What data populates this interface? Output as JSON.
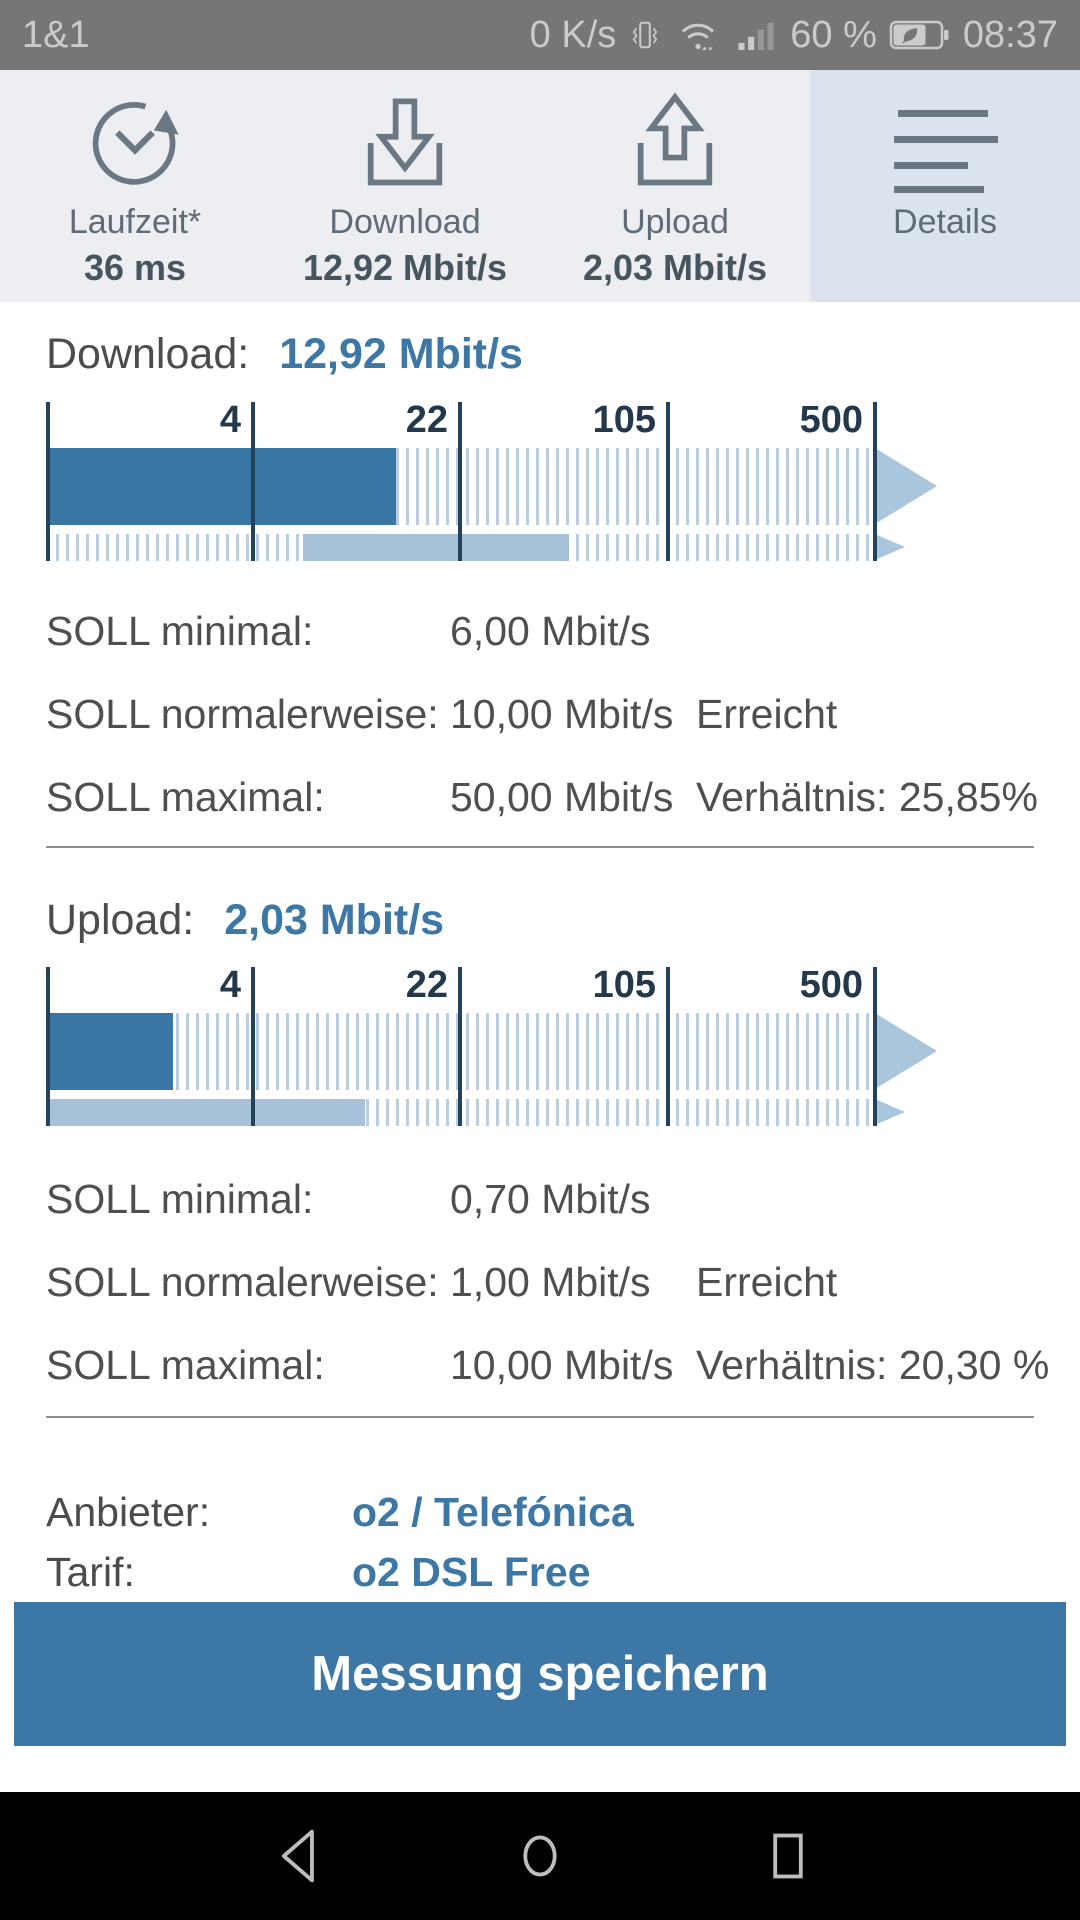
{
  "status_bar": {
    "carrier": "1&1",
    "net_speed": "0 K/s",
    "battery_percent": "60 %",
    "time": "08:37"
  },
  "toolbar": {
    "items": [
      {
        "id": "laufzeit",
        "icon": "runtime-clock-icon",
        "label": "Laufzeit*",
        "value": "36 ms"
      },
      {
        "id": "download",
        "icon": "download-icon",
        "label": "Download",
        "value": "12,92 Mbit/s"
      },
      {
        "id": "upload",
        "icon": "upload-icon",
        "label": "Upload",
        "value": "2,03 Mbit/s"
      },
      {
        "id": "details",
        "icon": "menu-icon",
        "label": "Details",
        "value": "",
        "active": true
      }
    ]
  },
  "sections": [
    {
      "id": "download",
      "heading": "Download:",
      "heading_value": "12,92 Mbit/s",
      "rows": [
        {
          "label": "SOLL minimal:",
          "value": "6,00 Mbit/s",
          "extra": ""
        },
        {
          "label": "SOLL normalerweise:",
          "value": "10,00 Mbit/s",
          "extra": "Erreicht"
        },
        {
          "label": "SOLL maximal:",
          "value": "50,00 Mbit/s",
          "extra": "Verhältnis: 25,85%"
        }
      ]
    },
    {
      "id": "upload",
      "heading": "Upload:",
      "heading_value": "2,03 Mbit/s",
      "rows": [
        {
          "label": "SOLL minimal:",
          "value": "0,70 Mbit/s",
          "extra": ""
        },
        {
          "label": "SOLL normalerweise:",
          "value": "1,00 Mbit/s",
          "extra": "Erreicht"
        },
        {
          "label": "SOLL maximal:",
          "value": "10,00 Mbit/s",
          "extra": "Verhältnis: 20,30 %"
        }
      ]
    }
  ],
  "provider_rows": [
    {
      "label": "Anbieter:",
      "value": "o2 / Telefónica"
    },
    {
      "label": "Tarif:",
      "value": "o2 DSL Free"
    }
  ],
  "save_button_label": "Messung speichern",
  "chart_data": [
    {
      "type": "bar",
      "title": "Download",
      "unit": "Mbit/s",
      "scale": "log",
      "axis_min": 0.7,
      "axis_ticks": [
        4,
        22,
        105,
        500
      ],
      "measured": 12.92,
      "soll_minimal": 6.0,
      "soll_normal": 10.0,
      "soll_maximal": 50.0,
      "status": "Erreicht",
      "verhaeltnis_percent": 25.85
    },
    {
      "type": "bar",
      "title": "Upload",
      "unit": "Mbit/s",
      "scale": "log",
      "axis_min": 0.7,
      "axis_ticks": [
        4,
        22,
        105,
        500
      ],
      "measured": 2.03,
      "soll_minimal": 0.7,
      "soll_normal": 1.0,
      "soll_maximal": 10.0,
      "status": "Erreicht",
      "verhaeltnis_percent": 20.3
    }
  ],
  "colors": {
    "accent_blue": "#3c77a5",
    "bar_dark_blue": "#3a76a4",
    "bar_light_blue": "#a7c2d8",
    "hatch_stripe": "#bbcedf",
    "tick_navy": "#24435a",
    "toolbar_bg": "#eceef2",
    "toolbar_active_bg": "#dbe4ee",
    "status_bar_bg": "#767676"
  }
}
